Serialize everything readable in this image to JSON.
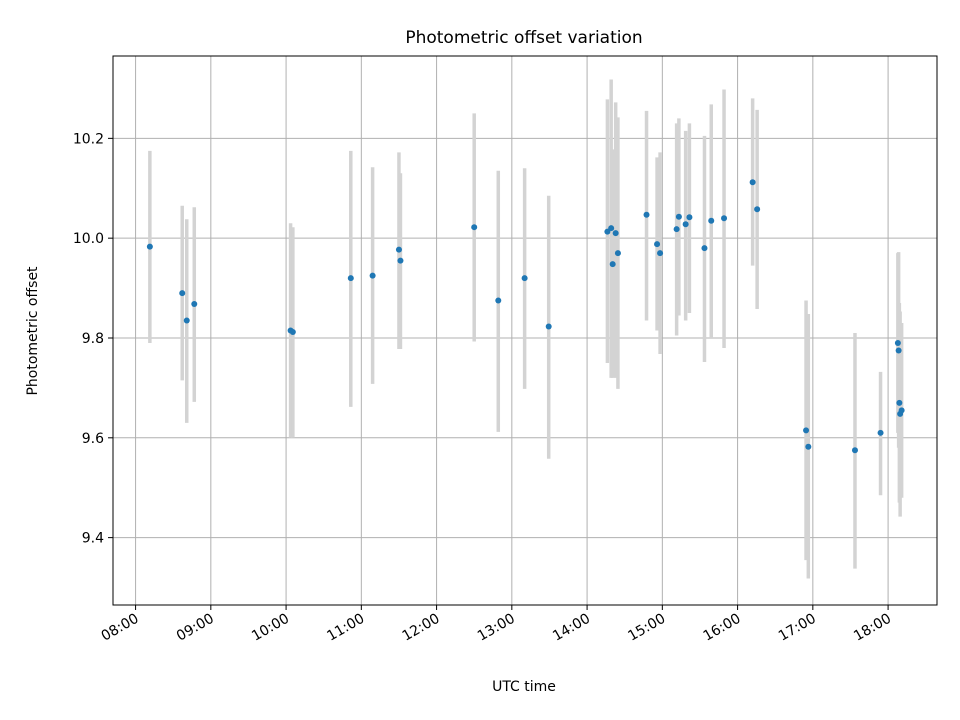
{
  "chart_data": {
    "type": "scatter",
    "title": "Photometric offset variation",
    "xlabel": "UTC time",
    "ylabel": "Photometric offset",
    "x_unit": "hour (UTC)",
    "xlim": [
      7.7,
      18.65
    ],
    "ylim": [
      9.265,
      10.365
    ],
    "x_ticks": [
      "08:00",
      "09:00",
      "10:00",
      "11:00",
      "12:00",
      "13:00",
      "14:00",
      "15:00",
      "16:00",
      "17:00",
      "18:00"
    ],
    "y_ticks": [
      "9.4",
      "9.6",
      "9.8",
      "10.0",
      "10.2"
    ],
    "grid": true,
    "legend": "none",
    "marker_color": "#1f77b4",
    "errorbar_color": "#d3d3d3",
    "points": [
      {
        "x": 8.19,
        "y": 9.983,
        "lo": 9.79,
        "hi": 10.175
      },
      {
        "x": 8.62,
        "y": 9.89,
        "lo": 9.715,
        "hi": 10.065
      },
      {
        "x": 8.68,
        "y": 9.835,
        "lo": 9.63,
        "hi": 10.038
      },
      {
        "x": 8.78,
        "y": 9.868,
        "lo": 9.672,
        "hi": 10.062
      },
      {
        "x": 10.06,
        "y": 9.815,
        "lo": 9.6,
        "hi": 10.03
      },
      {
        "x": 10.09,
        "y": 9.812,
        "lo": 9.6,
        "hi": 10.022
      },
      {
        "x": 10.86,
        "y": 9.92,
        "lo": 9.662,
        "hi": 10.175
      },
      {
        "x": 11.15,
        "y": 9.925,
        "lo": 9.708,
        "hi": 10.142
      },
      {
        "x": 11.5,
        "y": 9.977,
        "lo": 9.778,
        "hi": 10.172
      },
      {
        "x": 11.52,
        "y": 9.955,
        "lo": 9.778,
        "hi": 10.13
      },
      {
        "x": 12.5,
        "y": 10.022,
        "lo": 9.793,
        "hi": 10.25
      },
      {
        "x": 12.82,
        "y": 9.875,
        "lo": 9.612,
        "hi": 10.135
      },
      {
        "x": 13.17,
        "y": 9.92,
        "lo": 9.698,
        "hi": 10.14
      },
      {
        "x": 13.49,
        "y": 9.823,
        "lo": 9.558,
        "hi": 10.085
      },
      {
        "x": 14.27,
        "y": 10.013,
        "lo": 9.75,
        "hi": 10.278
      },
      {
        "x": 14.32,
        "y": 10.02,
        "lo": 9.72,
        "hi": 10.318
      },
      {
        "x": 14.34,
        "y": 9.948,
        "lo": 9.72,
        "hi": 10.178
      },
      {
        "x": 14.38,
        "y": 10.01,
        "lo": 9.72,
        "hi": 10.272
      },
      {
        "x": 14.41,
        "y": 9.97,
        "lo": 9.698,
        "hi": 10.242
      },
      {
        "x": 14.79,
        "y": 10.047,
        "lo": 9.835,
        "hi": 10.255
      },
      {
        "x": 14.93,
        "y": 9.988,
        "lo": 9.815,
        "hi": 10.162
      },
      {
        "x": 14.97,
        "y": 9.97,
        "lo": 9.768,
        "hi": 10.172
      },
      {
        "x": 15.19,
        "y": 10.018,
        "lo": 9.805,
        "hi": 10.23
      },
      {
        "x": 15.22,
        "y": 10.043,
        "lo": 9.845,
        "hi": 10.24
      },
      {
        "x": 15.31,
        "y": 10.028,
        "lo": 9.835,
        "hi": 10.215
      },
      {
        "x": 15.36,
        "y": 10.042,
        "lo": 9.85,
        "hi": 10.23
      },
      {
        "x": 15.56,
        "y": 9.98,
        "lo": 9.752,
        "hi": 10.205
      },
      {
        "x": 15.65,
        "y": 10.035,
        "lo": 9.8,
        "hi": 10.268
      },
      {
        "x": 15.82,
        "y": 10.04,
        "lo": 9.78,
        "hi": 10.298
      },
      {
        "x": 16.2,
        "y": 10.112,
        "lo": 9.945,
        "hi": 10.28
      },
      {
        "x": 16.26,
        "y": 10.058,
        "lo": 9.858,
        "hi": 10.257
      },
      {
        "x": 16.91,
        "y": 9.615,
        "lo": 9.355,
        "hi": 9.875
      },
      {
        "x": 16.94,
        "y": 9.582,
        "lo": 9.318,
        "hi": 9.848
      },
      {
        "x": 17.56,
        "y": 9.575,
        "lo": 9.338,
        "hi": 9.81
      },
      {
        "x": 17.9,
        "y": 9.61,
        "lo": 9.485,
        "hi": 9.732
      },
      {
        "x": 18.13,
        "y": 9.79,
        "lo": 9.61,
        "hi": 9.97
      },
      {
        "x": 18.14,
        "y": 9.775,
        "lo": 9.58,
        "hi": 9.972
      },
      {
        "x": 18.15,
        "y": 9.67,
        "lo": 9.47,
        "hi": 9.87
      },
      {
        "x": 18.16,
        "y": 9.648,
        "lo": 9.442,
        "hi": 9.853
      },
      {
        "x": 18.18,
        "y": 9.655,
        "lo": 9.48,
        "hi": 9.83
      }
    ]
  }
}
